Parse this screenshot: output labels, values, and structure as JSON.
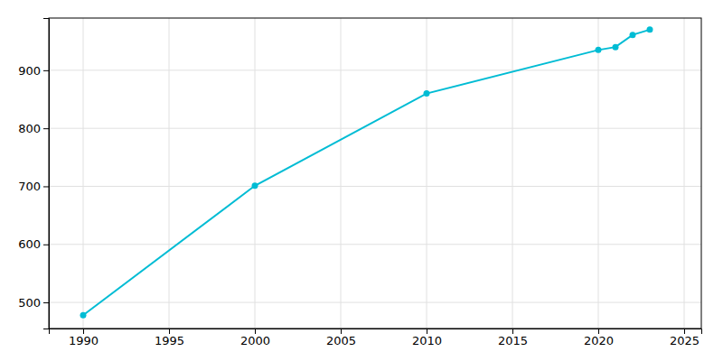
{
  "chart_data": {
    "type": "line",
    "x": [
      1990,
      2000,
      2010,
      2020,
      2021,
      2022,
      2023
    ],
    "values": [
      478,
      701,
      860,
      935,
      940,
      961,
      970
    ],
    "color": "#00BCD4",
    "marker": "circle",
    "xlim": [
      1988,
      2026
    ],
    "ylim": [
      455,
      990
    ],
    "xticks": [
      1990,
      1995,
      2000,
      2005,
      2010,
      2015,
      2020,
      2025
    ],
    "yticks": [
      500,
      600,
      700,
      800,
      900
    ],
    "grid": true
  }
}
